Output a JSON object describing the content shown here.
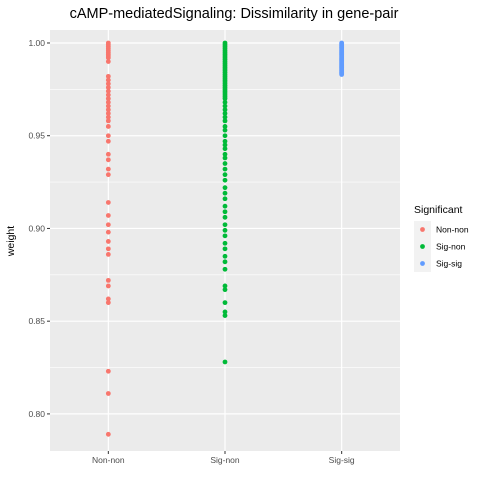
{
  "chart_data": {
    "type": "scatter",
    "title": "cAMP-mediatedSignaling: Dissimilarity in gene-pair",
    "xlabel": "",
    "ylabel": "weight",
    "categories": [
      "Non-non",
      "Sig-non",
      "Sig-sig"
    ],
    "ylim": [
      0.78,
      1.007
    ],
    "yticks": [
      0.8,
      0.85,
      0.9,
      0.95,
      1.0
    ],
    "ytick_labels": [
      "0.80",
      "0.85",
      "0.90",
      "0.95",
      "1.00"
    ],
    "grid": true,
    "legend": {
      "title": "Significant",
      "placement": "right",
      "entries": [
        "Non-non",
        "Sig-non",
        "Sig-sig"
      ]
    },
    "series": [
      {
        "name": "Non-non",
        "color": "#F8766D",
        "x": "Non-non",
        "values": [
          1.0,
          0.999,
          0.998,
          0.997,
          0.996,
          0.995,
          0.994,
          0.993,
          0.992,
          0.99,
          0.982,
          0.98,
          0.978,
          0.976,
          0.974,
          0.972,
          0.97,
          0.968,
          0.966,
          0.964,
          0.962,
          0.96,
          0.958,
          0.955,
          0.95,
          0.947,
          0.94,
          0.937,
          0.932,
          0.929,
          0.914,
          0.907,
          0.902,
          0.898,
          0.893,
          0.889,
          0.886,
          0.872,
          0.869,
          0.862,
          0.86,
          0.823,
          0.811,
          0.789
        ]
      },
      {
        "name": "Sig-non",
        "color": "#00BA38",
        "x": "Sig-non",
        "values": [
          1.0,
          0.999,
          0.998,
          0.997,
          0.996,
          0.995,
          0.994,
          0.993,
          0.992,
          0.991,
          0.99,
          0.989,
          0.988,
          0.987,
          0.986,
          0.985,
          0.984,
          0.983,
          0.982,
          0.981,
          0.98,
          0.979,
          0.978,
          0.977,
          0.976,
          0.975,
          0.974,
          0.973,
          0.972,
          0.971,
          0.97,
          0.968,
          0.966,
          0.964,
          0.962,
          0.96,
          0.958,
          0.955,
          0.953,
          0.95,
          0.947,
          0.945,
          0.943,
          0.94,
          0.938,
          0.935,
          0.932,
          0.929,
          0.926,
          0.922,
          0.919,
          0.916,
          0.912,
          0.909,
          0.906,
          0.902,
          0.899,
          0.896,
          0.892,
          0.889,
          0.885,
          0.882,
          0.878,
          0.869,
          0.867,
          0.86,
          0.855,
          0.853,
          0.828
        ]
      },
      {
        "name": "Sig-sig",
        "color": "#619CFF",
        "x": "Sig-sig",
        "values": [
          1.0,
          0.9995,
          0.999,
          0.9985,
          0.998,
          0.9975,
          0.997,
          0.9965,
          0.996,
          0.9955,
          0.995,
          0.9945,
          0.994,
          0.9935,
          0.993,
          0.9925,
          0.992,
          0.9915,
          0.991,
          0.9905,
          0.99,
          0.9895,
          0.989,
          0.9885,
          0.988,
          0.9875,
          0.987,
          0.9865,
          0.986,
          0.9855,
          0.985,
          0.9845,
          0.984,
          0.9835,
          0.983
        ]
      }
    ]
  }
}
